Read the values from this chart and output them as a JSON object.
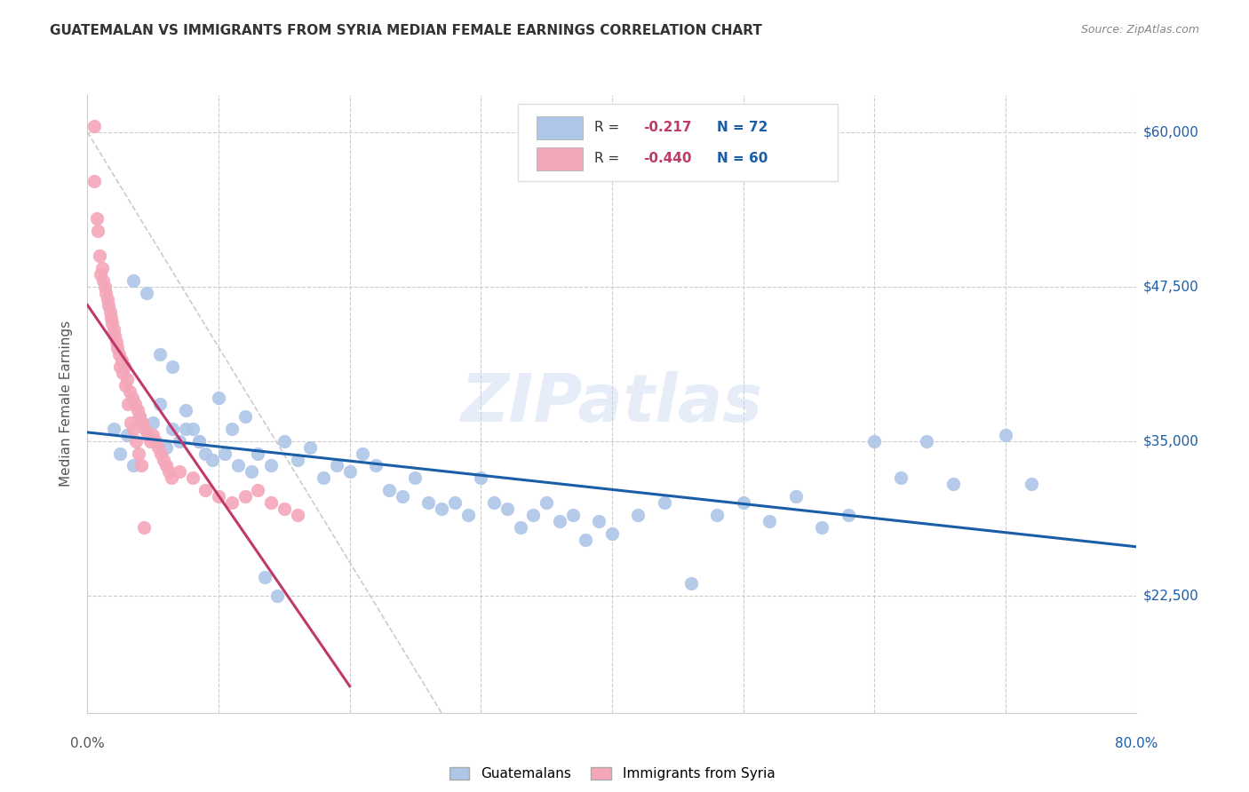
{
  "title": "GUATEMALAN VS IMMIGRANTS FROM SYRIA MEDIAN FEMALE EARNINGS CORRELATION CHART",
  "source": "Source: ZipAtlas.com",
  "ylabel": "Median Female Earnings",
  "xmin": 0.0,
  "xmax": 0.8,
  "ymin": 13000,
  "ymax": 63000,
  "yticks": [
    22500,
    35000,
    47500,
    60000
  ],
  "ytick_labels": [
    "$22,500",
    "$35,000",
    "$47,500",
    "$60,000"
  ],
  "watermark": "ZIPatlas",
  "legend_r_blue": "-0.217",
  "legend_n_blue": "72",
  "legend_r_pink": "-0.440",
  "legend_n_pink": "60",
  "blue_color": "#aec6e8",
  "pink_color": "#f4a7b9",
  "trend_blue_color": "#1a5ea8",
  "trend_pink_color": "#c0396b",
  "guatemalans_x": [
    0.02,
    0.025,
    0.03,
    0.035,
    0.04,
    0.05,
    0.055,
    0.06,
    0.065,
    0.07,
    0.075,
    0.08,
    0.085,
    0.09,
    0.1,
    0.11,
    0.12,
    0.13,
    0.14,
    0.15,
    0.16,
    0.17,
    0.18,
    0.19,
    0.2,
    0.21,
    0.22,
    0.23,
    0.24,
    0.25,
    0.26,
    0.27,
    0.28,
    0.29,
    0.3,
    0.31,
    0.32,
    0.33,
    0.34,
    0.35,
    0.36,
    0.37,
    0.38,
    0.39,
    0.4,
    0.42,
    0.44,
    0.46,
    0.48,
    0.5,
    0.52,
    0.54,
    0.56,
    0.58,
    0.6,
    0.62,
    0.64,
    0.66,
    0.7,
    0.72,
    0.035,
    0.045,
    0.055,
    0.065,
    0.075,
    0.085,
    0.095,
    0.105,
    0.115,
    0.125,
    0.135,
    0.145
  ],
  "guatemalans_y": [
    36000,
    34000,
    35500,
    33000,
    37000,
    36500,
    38000,
    34500,
    36000,
    35000,
    37500,
    36000,
    35000,
    34000,
    38500,
    36000,
    37000,
    34000,
    33000,
    35000,
    33500,
    34500,
    32000,
    33000,
    32500,
    34000,
    33000,
    31000,
    30500,
    32000,
    30000,
    29500,
    30000,
    29000,
    32000,
    30000,
    29500,
    28000,
    29000,
    30000,
    28500,
    29000,
    27000,
    28500,
    27500,
    29000,
    30000,
    23500,
    29000,
    30000,
    28500,
    30500,
    28000,
    29000,
    35000,
    32000,
    35000,
    31500,
    35500,
    31500,
    48000,
    47000,
    42000,
    41000,
    36000,
    35000,
    33500,
    34000,
    33000,
    32500,
    24000,
    22500
  ],
  "syria_x": [
    0.005,
    0.008,
    0.01,
    0.012,
    0.014,
    0.016,
    0.018,
    0.02,
    0.022,
    0.024,
    0.026,
    0.028,
    0.03,
    0.032,
    0.034,
    0.036,
    0.038,
    0.04,
    0.042,
    0.044,
    0.046,
    0.048,
    0.05,
    0.052,
    0.054,
    0.056,
    0.058,
    0.06,
    0.062,
    0.064,
    0.07,
    0.08,
    0.09,
    0.1,
    0.11,
    0.12,
    0.13,
    0.14,
    0.15,
    0.16,
    0.005,
    0.007,
    0.009,
    0.011,
    0.013,
    0.015,
    0.017,
    0.019,
    0.021,
    0.023,
    0.025,
    0.027,
    0.029,
    0.031,
    0.033,
    0.035,
    0.037,
    0.039,
    0.041,
    0.043
  ],
  "syria_y": [
    60500,
    52000,
    48500,
    48000,
    47000,
    46000,
    45000,
    44000,
    43000,
    42000,
    41500,
    41000,
    40000,
    39000,
    38500,
    38000,
    37500,
    37000,
    36500,
    36000,
    35500,
    35000,
    35500,
    35000,
    34500,
    34000,
    33500,
    33000,
    32500,
    32000,
    32500,
    32000,
    31000,
    30500,
    30000,
    30500,
    31000,
    30000,
    29500,
    29000,
    56000,
    53000,
    50000,
    49000,
    47500,
    46500,
    45500,
    44500,
    43500,
    42500,
    41000,
    40500,
    39500,
    38000,
    36500,
    36000,
    35000,
    34000,
    33000,
    28000
  ]
}
